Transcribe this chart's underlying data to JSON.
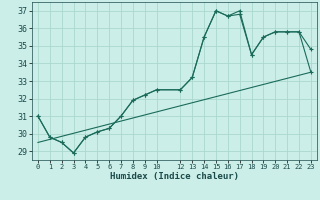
{
  "xlabel": "Humidex (Indice chaleur)",
  "bg_color": "#cceee8",
  "grid_color": "#aad8d0",
  "line_color": "#1a6b5a",
  "xlim": [
    -0.5,
    23.5
  ],
  "ylim": [
    28.5,
    37.5
  ],
  "xticks": [
    0,
    1,
    2,
    3,
    4,
    5,
    6,
    7,
    8,
    9,
    10,
    12,
    13,
    14,
    15,
    16,
    17,
    18,
    19,
    20,
    21,
    22,
    23
  ],
  "yticks": [
    29,
    30,
    31,
    32,
    33,
    34,
    35,
    36,
    37
  ],
  "series1_x": [
    0,
    1,
    2,
    3,
    4,
    5,
    6,
    7,
    8,
    9,
    10,
    12,
    13,
    14,
    15,
    16,
    17,
    18,
    19,
    20,
    21,
    22,
    23
  ],
  "series1_y": [
    31.0,
    29.8,
    29.5,
    28.9,
    29.8,
    30.1,
    30.3,
    31.0,
    31.9,
    32.2,
    32.5,
    32.5,
    33.2,
    35.5,
    37.0,
    36.7,
    36.8,
    34.5,
    35.5,
    35.8,
    35.8,
    35.8,
    34.8
  ],
  "series2_x": [
    0,
    1,
    2,
    3,
    4,
    5,
    6,
    7,
    8,
    9,
    10,
    12,
    13,
    14,
    15,
    16,
    17,
    18,
    19,
    20,
    21,
    22,
    23
  ],
  "series2_y": [
    31.0,
    29.8,
    29.5,
    28.9,
    29.8,
    30.1,
    30.3,
    31.0,
    31.9,
    32.2,
    32.5,
    32.5,
    33.2,
    35.5,
    37.0,
    36.7,
    37.0,
    34.5,
    35.5,
    35.8,
    35.8,
    35.8,
    33.5
  ],
  "series3_x": [
    0,
    23
  ],
  "series3_y": [
    29.5,
    33.5
  ]
}
